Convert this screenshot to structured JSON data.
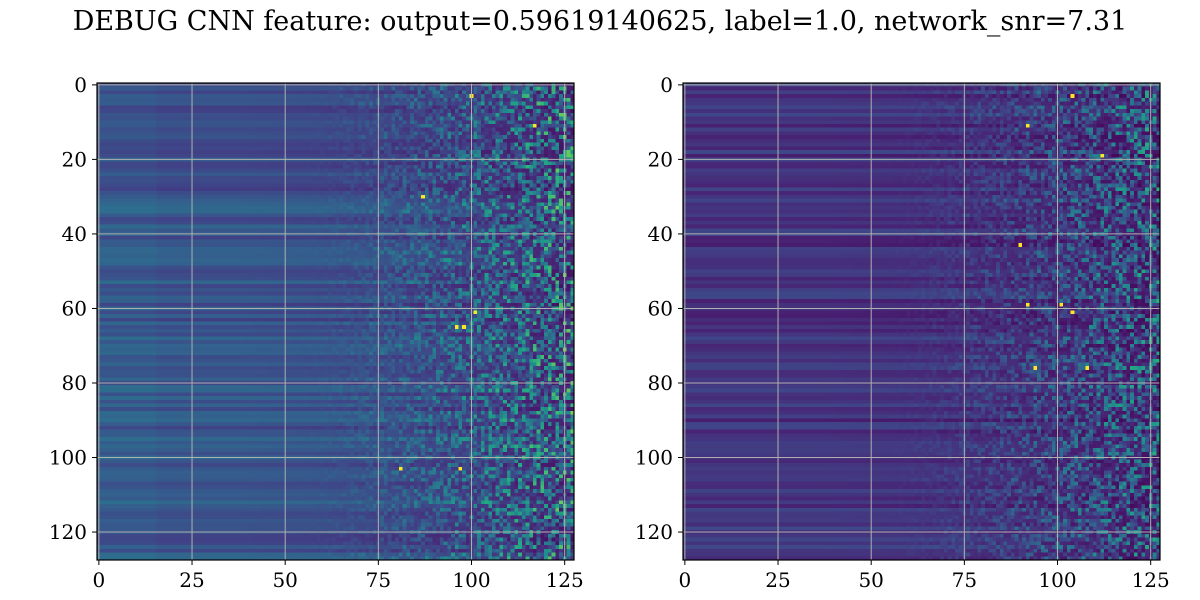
{
  "title": "DEBUG CNN feature: output=0.59619140625, label=1.0, network_snr=7.31",
  "colormap": "viridis",
  "colors": {
    "background": "#ffffff",
    "grid": "#b0b0b0",
    "axis": "#000000",
    "low": "#440154",
    "high": "#fde725"
  },
  "chart_data": [
    {
      "type": "heatmap",
      "title": "",
      "xlabel": "",
      "ylabel": "",
      "shape": [
        128,
        128
      ],
      "xlim": [
        -0.5,
        127.5
      ],
      "ylim": [
        127.5,
        -0.5
      ],
      "y_inverted": true,
      "xticks": [
        0,
        25,
        50,
        75,
        100,
        125
      ],
      "yticks": [
        0,
        20,
        40,
        60,
        80,
        100,
        120
      ],
      "grid": true,
      "pattern": "smooth horizontal bands on the left (columns 0-60), increasingly noisy speckle toward the right (columns 75-127)",
      "hot_spots": [
        [
          87,
          30
        ],
        [
          96,
          65
        ],
        [
          98,
          65
        ],
        [
          101,
          61
        ],
        [
          81,
          103
        ],
        [
          97,
          103
        ],
        [
          100,
          3
        ],
        [
          117,
          11
        ]
      ]
    },
    {
      "type": "heatmap",
      "title": "",
      "xlabel": "",
      "ylabel": "",
      "shape": [
        128,
        128
      ],
      "xlim": [
        -0.5,
        127.5
      ],
      "ylim": [
        127.5,
        -0.5
      ],
      "y_inverted": true,
      "xticks": [
        0,
        25,
        50,
        75,
        100,
        125
      ],
      "yticks": [
        0,
        20,
        40,
        60,
        80,
        100,
        120
      ],
      "grid": true,
      "pattern": "dark horizontal bands on the left, noisy speckle toward the right (columns 75-127)",
      "hot_spots": [
        [
          112,
          19
        ],
        [
          92,
          59
        ],
        [
          101,
          59
        ],
        [
          104,
          61
        ],
        [
          90,
          43
        ],
        [
          94,
          76
        ],
        [
          108,
          76
        ],
        [
          92,
          11
        ],
        [
          104,
          3
        ]
      ]
    }
  ]
}
